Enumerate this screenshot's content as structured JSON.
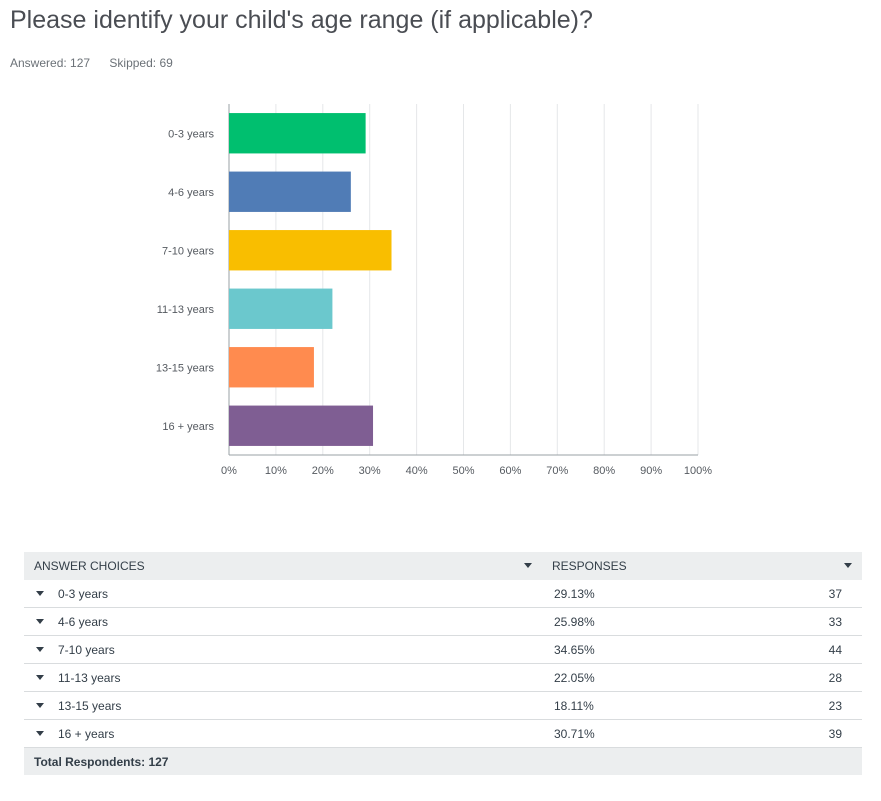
{
  "question": {
    "title": "Please identify your child's age range (if applicable)?"
  },
  "summary": {
    "answered": "Answered: 127",
    "skipped": "Skipped: 69"
  },
  "chart_data": {
    "type": "bar",
    "orientation": "horizontal",
    "categories": [
      "0-3 years",
      "4-6 years",
      "7-10 years",
      "11-13 years",
      "13-15 years",
      "16 + years"
    ],
    "values": [
      29.13,
      25.98,
      34.65,
      22.05,
      18.11,
      30.71
    ],
    "colors": [
      "#00bf6f",
      "#507cb6",
      "#f9be00",
      "#6bc8cd",
      "#ff8b4f",
      "#7f5e93"
    ],
    "xlim": [
      0,
      100
    ],
    "x_ticks": [
      "0%",
      "10%",
      "20%",
      "30%",
      "40%",
      "50%",
      "60%",
      "70%",
      "80%",
      "90%",
      "100%"
    ],
    "grid": true
  },
  "table": {
    "headers": {
      "choices": "ANSWER CHOICES",
      "responses": "RESPONSES"
    },
    "rows": [
      {
        "label": "0-3 years",
        "pct": "29.13%",
        "count": "37"
      },
      {
        "label": "4-6 years",
        "pct": "25.98%",
        "count": "33"
      },
      {
        "label": "7-10 years",
        "pct": "34.65%",
        "count": "44"
      },
      {
        "label": "11-13 years",
        "pct": "22.05%",
        "count": "28"
      },
      {
        "label": "13-15 years",
        "pct": "18.11%",
        "count": "23"
      },
      {
        "label": "16 + years",
        "pct": "30.71%",
        "count": "39"
      }
    ],
    "footer": "Total Respondents: 127"
  }
}
